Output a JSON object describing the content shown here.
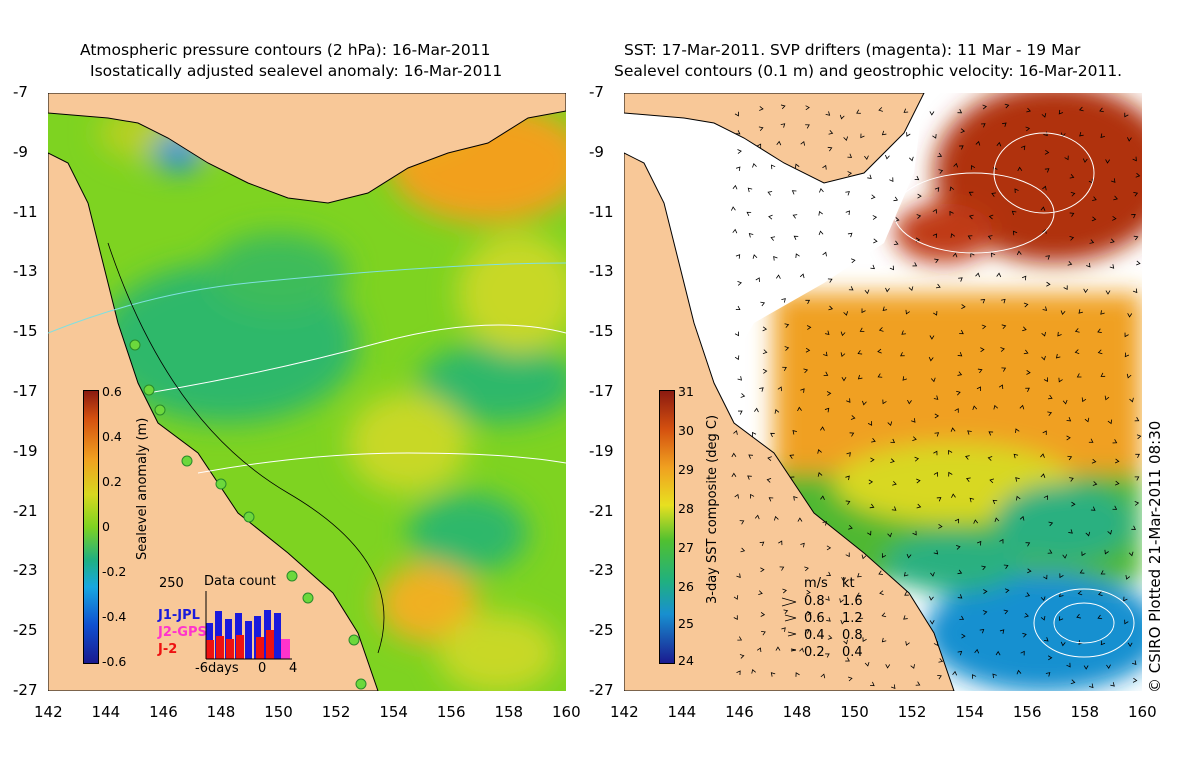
{
  "left_panel": {
    "title_line1": "Atmospheric pressure contours (2 hPa): 16-Mar-2011",
    "title_line2": "Isostatically adjusted sealevel anomaly: 16-Mar-2011",
    "colorbar": {
      "label": "Sealevel anomaly (m)",
      "ticks": [
        "0.6",
        "0.4",
        "0.2",
        "0",
        "-0.2",
        "-0.4",
        "-0.6"
      ]
    },
    "data_count": {
      "title": "Data count",
      "ymax_label": "250",
      "satellites": [
        {
          "name": "J1-JPL",
          "color": "#1a1adc"
        },
        {
          "name": "J2-GPS",
          "color": "#ff33cc"
        },
        {
          "name": "J-2",
          "color": "#ee1111"
        }
      ],
      "x_labels": [
        "-6days",
        "0",
        "4"
      ]
    }
  },
  "right_panel": {
    "title_line1": "SST: 17-Mar-2011. SVP drifters (magenta): 11 Mar - 19 Mar",
    "title_line2": "Sealevel contours (0.1 m) and geostrophic velocity: 16-Mar-2011.",
    "colorbar": {
      "label": "3-day SST composite (deg C)",
      "ticks": [
        "31",
        "30",
        "29",
        "28",
        "27",
        "26",
        "25",
        "24"
      ]
    },
    "velocity_legend": {
      "header_ms": "m/s",
      "header_kt": "kt",
      "rows": [
        {
          "ms": "0.8",
          "kt": "1.6"
        },
        {
          "ms": "0.6",
          "kt": "1.2"
        },
        {
          "ms": "0.4",
          "kt": "0.8"
        },
        {
          "ms": "0.2",
          "kt": "0.4"
        }
      ]
    }
  },
  "axes": {
    "lat_labels": [
      "-7",
      "-9",
      "-11",
      "-13",
      "-15",
      "-17",
      "-19",
      "-21",
      "-23",
      "-25",
      "-27"
    ],
    "lon_labels": [
      "142",
      "144",
      "146",
      "148",
      "150",
      "152",
      "154",
      "156",
      "158",
      "160"
    ]
  },
  "credit": "© CSIRO Plotted 21-Mar-2011 08:30",
  "colors": {
    "land": "#f8c898",
    "anomaly_green": "#7ed321",
    "sst_orange": "#f0a020",
    "sst_red": "#b03010",
    "cloud": "#ffffff"
  }
}
